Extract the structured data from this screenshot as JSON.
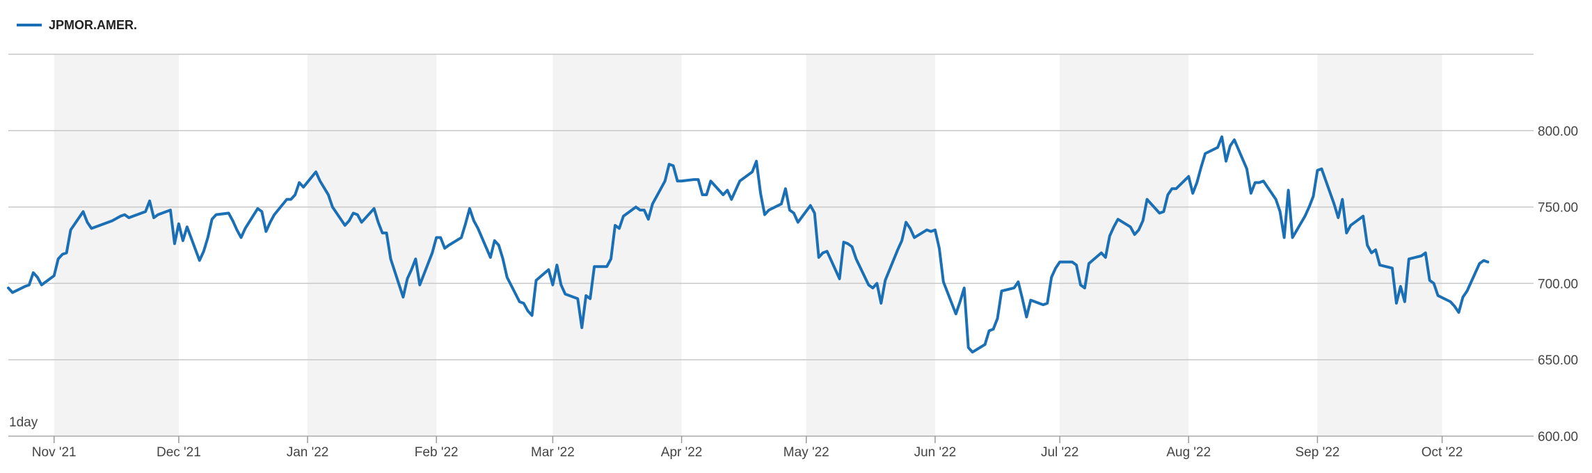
{
  "chart_data": {
    "type": "line",
    "title": "",
    "xlabel": "",
    "ylabel": "",
    "interval": "1day",
    "ylim": [
      600,
      850
    ],
    "yticks": [
      600,
      650,
      700,
      750,
      800
    ],
    "ytick_labels": [
      "600.00",
      "650.00",
      "700.00",
      "750.00",
      "800.00"
    ],
    "xlim": [
      "2021-10-21",
      "2022-10-23"
    ],
    "xticks": [
      {
        "date": "2021-11-01",
        "label": "Nov '21"
      },
      {
        "date": "2021-12-01",
        "label": "Dec '21"
      },
      {
        "date": "2022-01-01",
        "label": "Jan '22"
      },
      {
        "date": "2022-02-01",
        "label": "Feb '22"
      },
      {
        "date": "2022-03-01",
        "label": "Mar '22"
      },
      {
        "date": "2022-04-01",
        "label": "Apr '22"
      },
      {
        "date": "2022-05-01",
        "label": "May '22"
      },
      {
        "date": "2022-06-01",
        "label": "Jun '22"
      },
      {
        "date": "2022-07-01",
        "label": "Jul '22"
      },
      {
        "date": "2022-08-01",
        "label": "Aug '22"
      },
      {
        "date": "2022-09-01",
        "label": "Sep '22"
      },
      {
        "date": "2022-10-01",
        "label": "Oct '22"
      }
    ],
    "grid": true,
    "alternating_month_bands": true,
    "legend_position": "top-left",
    "series": [
      {
        "name": "JPMOR.AMER.",
        "color": "#1a6fb5",
        "points": [
          [
            "2021-10-21",
            697
          ],
          [
            "2021-10-22",
            694
          ],
          [
            "2021-10-25",
            698
          ],
          [
            "2021-10-26",
            699
          ],
          [
            "2021-10-27",
            707
          ],
          [
            "2021-10-28",
            704
          ],
          [
            "2021-10-29",
            699
          ],
          [
            "2021-11-01",
            705
          ],
          [
            "2021-11-02",
            716
          ],
          [
            "2021-11-03",
            719
          ],
          [
            "2021-11-04",
            720
          ],
          [
            "2021-11-05",
            735
          ],
          [
            "2021-11-08",
            747
          ],
          [
            "2021-11-09",
            740
          ],
          [
            "2021-11-10",
            736
          ],
          [
            "2021-11-15",
            741
          ],
          [
            "2021-11-17",
            744
          ],
          [
            "2021-11-18",
            745
          ],
          [
            "2021-11-19",
            743
          ],
          [
            "2021-11-22",
            746
          ],
          [
            "2021-11-23",
            747
          ],
          [
            "2021-11-24",
            754
          ],
          [
            "2021-11-25",
            743
          ],
          [
            "2021-11-26",
            745
          ],
          [
            "2021-11-29",
            748
          ],
          [
            "2021-11-30",
            726
          ],
          [
            "2021-12-01",
            739
          ],
          [
            "2021-12-02",
            728
          ],
          [
            "2021-12-03",
            737
          ],
          [
            "2021-12-06",
            715
          ],
          [
            "2021-12-07",
            721
          ],
          [
            "2021-12-08",
            730
          ],
          [
            "2021-12-09",
            742
          ],
          [
            "2021-12-10",
            745
          ],
          [
            "2021-12-13",
            746
          ],
          [
            "2021-12-14",
            741
          ],
          [
            "2021-12-15",
            735
          ],
          [
            "2021-12-16",
            730
          ],
          [
            "2021-12-17",
            736
          ],
          [
            "2021-12-20",
            749
          ],
          [
            "2021-12-21",
            747
          ],
          [
            "2021-12-22",
            734
          ],
          [
            "2021-12-23",
            740
          ],
          [
            "2021-12-24",
            745
          ],
          [
            "2021-12-27",
            755
          ],
          [
            "2021-12-28",
            755
          ],
          [
            "2021-12-29",
            758
          ],
          [
            "2021-12-30",
            766
          ],
          [
            "2021-12-31",
            763
          ],
          [
            "2022-01-03",
            773
          ],
          [
            "2022-01-04",
            767
          ],
          [
            "2022-01-06",
            758
          ],
          [
            "2022-01-07",
            750
          ],
          [
            "2022-01-10",
            738
          ],
          [
            "2022-01-11",
            741
          ],
          [
            "2022-01-12",
            746
          ],
          [
            "2022-01-13",
            745
          ],
          [
            "2022-01-14",
            740
          ],
          [
            "2022-01-17",
            749
          ],
          [
            "2022-01-18",
            740
          ],
          [
            "2022-01-19",
            733
          ],
          [
            "2022-01-20",
            733
          ],
          [
            "2022-01-21",
            716
          ],
          [
            "2022-01-24",
            691
          ],
          [
            "2022-01-25",
            703
          ],
          [
            "2022-01-26",
            709
          ],
          [
            "2022-01-27",
            716
          ],
          [
            "2022-01-28",
            699
          ],
          [
            "2022-01-31",
            720
          ],
          [
            "2022-02-01",
            730
          ],
          [
            "2022-02-02",
            730
          ],
          [
            "2022-02-03",
            723
          ],
          [
            "2022-02-04",
            725
          ],
          [
            "2022-02-07",
            730
          ],
          [
            "2022-02-08",
            739
          ],
          [
            "2022-02-09",
            749
          ],
          [
            "2022-02-10",
            741
          ],
          [
            "2022-02-11",
            736
          ],
          [
            "2022-02-14",
            717
          ],
          [
            "2022-02-15",
            728
          ],
          [
            "2022-02-16",
            725
          ],
          [
            "2022-02-17",
            716
          ],
          [
            "2022-02-18",
            704
          ],
          [
            "2022-02-21",
            688
          ],
          [
            "2022-02-22",
            687
          ],
          [
            "2022-02-23",
            682
          ],
          [
            "2022-02-24",
            679
          ],
          [
            "2022-02-25",
            702
          ],
          [
            "2022-02-28",
            709
          ],
          [
            "2022-03-01",
            699
          ],
          [
            "2022-03-02",
            712
          ],
          [
            "2022-03-03",
            699
          ],
          [
            "2022-03-04",
            693
          ],
          [
            "2022-03-07",
            690
          ],
          [
            "2022-03-08",
            671
          ],
          [
            "2022-03-09",
            692
          ],
          [
            "2022-03-10",
            690
          ],
          [
            "2022-03-11",
            711
          ],
          [
            "2022-03-14",
            711
          ],
          [
            "2022-03-15",
            716
          ],
          [
            "2022-03-16",
            738
          ],
          [
            "2022-03-17",
            736
          ],
          [
            "2022-03-18",
            744
          ],
          [
            "2022-03-21",
            750
          ],
          [
            "2022-03-22",
            748
          ],
          [
            "2022-03-23",
            748
          ],
          [
            "2022-03-24",
            742
          ],
          [
            "2022-03-25",
            752
          ],
          [
            "2022-03-28",
            767
          ],
          [
            "2022-03-29",
            778
          ],
          [
            "2022-03-30",
            777
          ],
          [
            "2022-03-31",
            767
          ],
          [
            "2022-04-01",
            767
          ],
          [
            "2022-04-04",
            768
          ],
          [
            "2022-04-05",
            768
          ],
          [
            "2022-04-06",
            758
          ],
          [
            "2022-04-07",
            758
          ],
          [
            "2022-04-08",
            767
          ],
          [
            "2022-04-11",
            758
          ],
          [
            "2022-04-12",
            761
          ],
          [
            "2022-04-13",
            755
          ],
          [
            "2022-04-14",
            761
          ],
          [
            "2022-04-15",
            767
          ],
          [
            "2022-04-18",
            773
          ],
          [
            "2022-04-19",
            780
          ],
          [
            "2022-04-20",
            759
          ],
          [
            "2022-04-21",
            745
          ],
          [
            "2022-04-22",
            748
          ],
          [
            "2022-04-25",
            752
          ],
          [
            "2022-04-26",
            762
          ],
          [
            "2022-04-27",
            748
          ],
          [
            "2022-04-28",
            746
          ],
          [
            "2022-04-29",
            740
          ],
          [
            "2022-05-02",
            751
          ],
          [
            "2022-05-03",
            746
          ],
          [
            "2022-05-04",
            717
          ],
          [
            "2022-05-05",
            720
          ],
          [
            "2022-05-06",
            721
          ],
          [
            "2022-05-09",
            703
          ],
          [
            "2022-05-10",
            727
          ],
          [
            "2022-05-11",
            726
          ],
          [
            "2022-05-12",
            724
          ],
          [
            "2022-05-13",
            716
          ],
          [
            "2022-05-16",
            699
          ],
          [
            "2022-05-17",
            697
          ],
          [
            "2022-05-18",
            700
          ],
          [
            "2022-05-19",
            687
          ],
          [
            "2022-05-20",
            702
          ],
          [
            "2022-05-23",
            722
          ],
          [
            "2022-05-24",
            728
          ],
          [
            "2022-05-25",
            740
          ],
          [
            "2022-05-26",
            736
          ],
          [
            "2022-05-27",
            730
          ],
          [
            "2022-05-30",
            735
          ],
          [
            "2022-05-31",
            734
          ],
          [
            "2022-06-01",
            735
          ],
          [
            "2022-06-02",
            723
          ],
          [
            "2022-06-03",
            701
          ],
          [
            "2022-06-06",
            680
          ],
          [
            "2022-06-07",
            688
          ],
          [
            "2022-06-08",
            697
          ],
          [
            "2022-06-09",
            658
          ],
          [
            "2022-06-10",
            655
          ],
          [
            "2022-06-13",
            660
          ],
          [
            "2022-06-14",
            669
          ],
          [
            "2022-06-15",
            670
          ],
          [
            "2022-06-16",
            677
          ],
          [
            "2022-06-17",
            695
          ],
          [
            "2022-06-20",
            697
          ],
          [
            "2022-06-21",
            701
          ],
          [
            "2022-06-22",
            690
          ],
          [
            "2022-06-23",
            678
          ],
          [
            "2022-06-24",
            689
          ],
          [
            "2022-06-27",
            686
          ],
          [
            "2022-06-28",
            687
          ],
          [
            "2022-06-29",
            704
          ],
          [
            "2022-06-30",
            710
          ],
          [
            "2022-07-01",
            714
          ],
          [
            "2022-07-04",
            714
          ],
          [
            "2022-07-05",
            712
          ],
          [
            "2022-07-06",
            699
          ],
          [
            "2022-07-07",
            697
          ],
          [
            "2022-07-08",
            713
          ],
          [
            "2022-07-11",
            720
          ],
          [
            "2022-07-12",
            717
          ],
          [
            "2022-07-13",
            731
          ],
          [
            "2022-07-14",
            737
          ],
          [
            "2022-07-15",
            742
          ],
          [
            "2022-07-18",
            737
          ],
          [
            "2022-07-19",
            732
          ],
          [
            "2022-07-20",
            735
          ],
          [
            "2022-07-21",
            741
          ],
          [
            "2022-07-22",
            755
          ],
          [
            "2022-07-25",
            746
          ],
          [
            "2022-07-26",
            747
          ],
          [
            "2022-07-27",
            758
          ],
          [
            "2022-07-28",
            762
          ],
          [
            "2022-07-29",
            762
          ],
          [
            "2022-08-01",
            770
          ],
          [
            "2022-08-02",
            759
          ],
          [
            "2022-08-03",
            766
          ],
          [
            "2022-08-04",
            776
          ],
          [
            "2022-08-05",
            785
          ],
          [
            "2022-08-08",
            789
          ],
          [
            "2022-08-09",
            796
          ],
          [
            "2022-08-10",
            780
          ],
          [
            "2022-08-11",
            790
          ],
          [
            "2022-08-12",
            794
          ],
          [
            "2022-08-15",
            775
          ],
          [
            "2022-08-16",
            759
          ],
          [
            "2022-08-17",
            766
          ],
          [
            "2022-08-18",
            766
          ],
          [
            "2022-08-19",
            767
          ],
          [
            "2022-08-22",
            755
          ],
          [
            "2022-08-23",
            747
          ],
          [
            "2022-08-24",
            730
          ],
          [
            "2022-08-25",
            761
          ],
          [
            "2022-08-26",
            730
          ],
          [
            "2022-08-29",
            744
          ],
          [
            "2022-08-30",
            750
          ],
          [
            "2022-08-31",
            757
          ],
          [
            "2022-09-01",
            774
          ],
          [
            "2022-09-02",
            775
          ],
          [
            "2022-09-05",
            752
          ],
          [
            "2022-09-06",
            743
          ],
          [
            "2022-09-07",
            755
          ],
          [
            "2022-09-08",
            733
          ],
          [
            "2022-09-09",
            738
          ],
          [
            "2022-09-12",
            744
          ],
          [
            "2022-09-13",
            725
          ],
          [
            "2022-09-14",
            720
          ],
          [
            "2022-09-15",
            722
          ],
          [
            "2022-09-16",
            712
          ],
          [
            "2022-09-19",
            710
          ],
          [
            "2022-09-20",
            687
          ],
          [
            "2022-09-21",
            698
          ],
          [
            "2022-09-22",
            688
          ],
          [
            "2022-09-23",
            716
          ],
          [
            "2022-09-26",
            718
          ],
          [
            "2022-09-27",
            720
          ],
          [
            "2022-09-28",
            702
          ],
          [
            "2022-09-29",
            700
          ],
          [
            "2022-09-30",
            692
          ],
          [
            "2022-10-03",
            688
          ],
          [
            "2022-10-04",
            685
          ],
          [
            "2022-10-05",
            681
          ],
          [
            "2022-10-06",
            691
          ],
          [
            "2022-10-07",
            695
          ],
          [
            "2022-10-10",
            713
          ],
          [
            "2022-10-11",
            715
          ],
          [
            "2022-10-12",
            714
          ]
        ]
      }
    ]
  }
}
